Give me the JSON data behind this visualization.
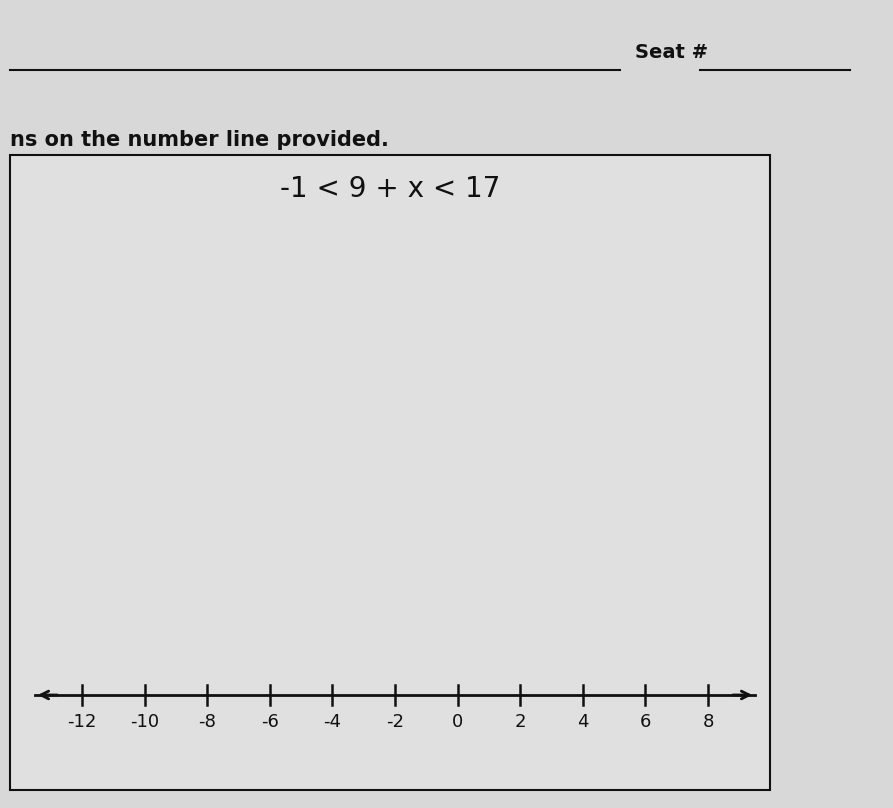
{
  "page_background": "#d8d8d8",
  "box_background": "#e0e0e0",
  "seat_label": "Seat #",
  "instruction_text": "ns on the number line provided.",
  "inequality_text": "-1 < 9 + x < 17",
  "number_line_min": -13.5,
  "number_line_max": 9.5,
  "tick_positions": [
    -12,
    -10,
    -8,
    -6,
    -4,
    -2,
    0,
    2,
    4,
    6,
    8
  ],
  "tick_labels": [
    "-12",
    "-10",
    "-8",
    "-6",
    "-4",
    "-2",
    "0",
    "2",
    "4",
    "6",
    "8"
  ],
  "inequality_fontsize": 20,
  "instruction_fontsize": 15,
  "tick_fontsize": 13,
  "seat_fontsize": 14,
  "line_color": "#111111",
  "text_color": "#111111",
  "header_line_color": "#111111"
}
